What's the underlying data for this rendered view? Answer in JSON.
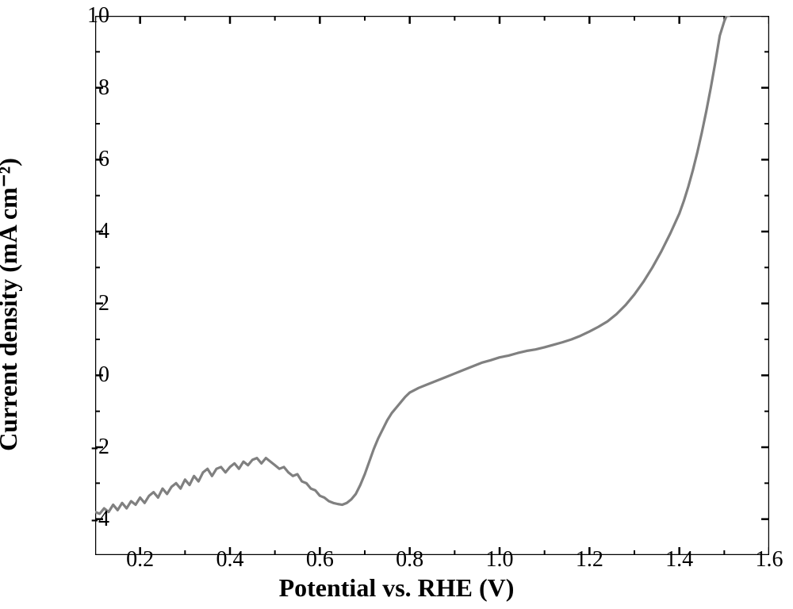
{
  "chart": {
    "type": "line",
    "background_color": "#ffffff",
    "line_color": "#808080",
    "line_width": 3.2,
    "axis_color": "#000000",
    "axis_width": 2.5,
    "tick_length_major": 10,
    "tick_length_minor": 6,
    "tick_fontsize": 28,
    "label_fontsize": 32,
    "label_fontweight": "bold",
    "xlabel": "Potential vs. RHE (V)",
    "ylabel": "Current density (mA cm⁻²)",
    "xlim": [
      0.1,
      1.6
    ],
    "ylim": [
      -5,
      10
    ],
    "xtick_major": [
      0.2,
      0.4,
      0.6,
      0.8,
      1.0,
      1.2,
      1.4,
      1.6
    ],
    "xtick_minor": [
      0.1,
      0.3,
      0.5,
      0.7,
      0.9,
      1.1,
      1.3,
      1.5
    ],
    "ytick_major": [
      -4,
      -2,
      0,
      2,
      4,
      6,
      8,
      10
    ],
    "ytick_minor": [
      -5,
      -3,
      -1,
      1,
      3,
      5,
      7,
      9
    ],
    "series": {
      "x": [
        0.1,
        0.11,
        0.12,
        0.13,
        0.14,
        0.15,
        0.16,
        0.17,
        0.18,
        0.19,
        0.2,
        0.21,
        0.22,
        0.23,
        0.24,
        0.25,
        0.26,
        0.27,
        0.28,
        0.29,
        0.3,
        0.31,
        0.32,
        0.33,
        0.34,
        0.35,
        0.36,
        0.37,
        0.38,
        0.39,
        0.4,
        0.41,
        0.42,
        0.43,
        0.44,
        0.45,
        0.46,
        0.47,
        0.48,
        0.49,
        0.5,
        0.51,
        0.52,
        0.53,
        0.54,
        0.55,
        0.56,
        0.57,
        0.58,
        0.59,
        0.6,
        0.61,
        0.62,
        0.63,
        0.64,
        0.65,
        0.66,
        0.67,
        0.68,
        0.69,
        0.7,
        0.71,
        0.72,
        0.73,
        0.74,
        0.75,
        0.76,
        0.77,
        0.78,
        0.79,
        0.8,
        0.82,
        0.84,
        0.86,
        0.88,
        0.9,
        0.92,
        0.94,
        0.96,
        0.98,
        1.0,
        1.02,
        1.04,
        1.06,
        1.08,
        1.1,
        1.12,
        1.14,
        1.16,
        1.18,
        1.2,
        1.22,
        1.24,
        1.26,
        1.28,
        1.3,
        1.32,
        1.34,
        1.36,
        1.38,
        1.4,
        1.41,
        1.42,
        1.43,
        1.44,
        1.45,
        1.46,
        1.47,
        1.48,
        1.49,
        1.5,
        1.505,
        1.51
      ],
      "y": [
        -3.8,
        -3.85,
        -3.7,
        -3.8,
        -3.6,
        -3.75,
        -3.55,
        -3.7,
        -3.5,
        -3.6,
        -3.4,
        -3.55,
        -3.35,
        -3.25,
        -3.4,
        -3.15,
        -3.3,
        -3.1,
        -3.0,
        -3.15,
        -2.9,
        -3.05,
        -2.8,
        -2.95,
        -2.7,
        -2.6,
        -2.8,
        -2.6,
        -2.55,
        -2.7,
        -2.55,
        -2.45,
        -2.6,
        -2.4,
        -2.5,
        -2.35,
        -2.3,
        -2.45,
        -2.3,
        -2.4,
        -2.5,
        -2.6,
        -2.55,
        -2.7,
        -2.8,
        -2.75,
        -2.95,
        -3.0,
        -3.15,
        -3.2,
        -3.35,
        -3.4,
        -3.5,
        -3.55,
        -3.58,
        -3.6,
        -3.55,
        -3.45,
        -3.3,
        -3.05,
        -2.75,
        -2.4,
        -2.05,
        -1.75,
        -1.5,
        -1.25,
        -1.05,
        -0.9,
        -0.75,
        -0.6,
        -0.48,
        -0.35,
        -0.25,
        -0.15,
        -0.05,
        0.05,
        0.15,
        0.25,
        0.35,
        0.42,
        0.5,
        0.55,
        0.62,
        0.68,
        0.72,
        0.78,
        0.85,
        0.92,
        1.0,
        1.1,
        1.22,
        1.35,
        1.5,
        1.7,
        1.95,
        2.25,
        2.6,
        3.0,
        3.45,
        3.95,
        4.5,
        4.85,
        5.25,
        5.7,
        6.2,
        6.75,
        7.35,
        8.0,
        8.7,
        9.45,
        9.85,
        10.0,
        10.0
      ]
    }
  }
}
